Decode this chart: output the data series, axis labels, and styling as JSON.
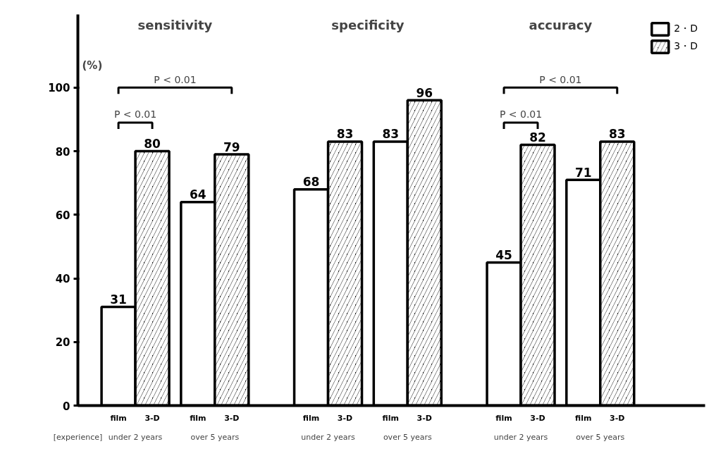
{
  "chart_data": {
    "type": "bar",
    "categories": [
      "film",
      "3-D",
      "film",
      "3-D",
      "film",
      "3-D",
      "film",
      "3-D",
      "film",
      "3-D",
      "film",
      "3-D"
    ],
    "series": [
      {
        "name": "2・D",
        "color": "#ffffff",
        "values": [
          31,
          null,
          64,
          null,
          68,
          null,
          83,
          null,
          45,
          null,
          71,
          null
        ]
      },
      {
        "name": "3・D",
        "color": "#000000",
        "values": [
          null,
          80,
          null,
          79,
          null,
          83,
          null,
          96,
          null,
          82,
          null,
          83
        ]
      }
    ],
    "ylabel": "(%)",
    "ylim": [
      0,
      123
    ],
    "yticks": [
      0,
      20,
      40,
      60,
      80,
      100
    ],
    "data_labels": true,
    "grid": false,
    "legend": "top right",
    "annotations": [
      "sensitivity",
      "specificity",
      "accuracy",
      "under 2 years",
      "over 5 years",
      "under 2 years",
      "over 5 years",
      "under 2 years",
      "over 5 years",
      "[experience]",
      "P < 0.01",
      "P < 0.01",
      "P < 0.01",
      "P < 0.01"
    ]
  }
}
